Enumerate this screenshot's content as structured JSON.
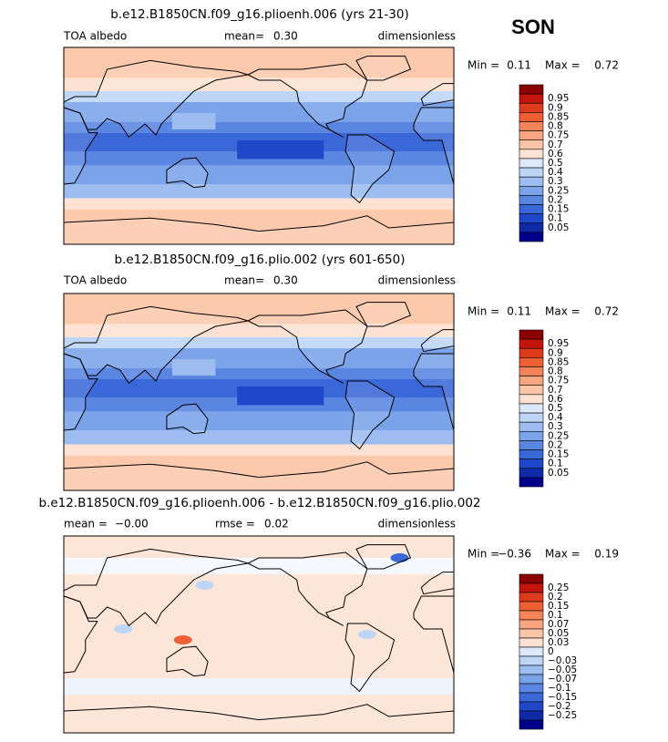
{
  "season": "SON",
  "panels": [
    {
      "title": "b.e12.B1850CN.f09_g16.plioenh.006 (yrs 21-30)",
      "subtitle": [
        "TOA albedo",
        "mean=",
        "0.30",
        "dimensionless"
      ],
      "minmax": [
        "Min =",
        "0.11",
        "Max =",
        "0.72"
      ],
      "colorbar": [
        "0.95",
        "0.9",
        "0.85",
        "0.8",
        "0.75",
        "0.7",
        "0.6",
        "0.5",
        "0.4",
        "0.3",
        "0.25",
        "0.2",
        "0.15",
        "0.1",
        "0.05"
      ]
    },
    {
      "title": "b.e12.B1850CN.f09_g16.plio.002 (yrs 601-650)",
      "subtitle": [
        "TOA albedo",
        "mean=",
        "0.30",
        "dimensionless"
      ],
      "minmax": [
        "Min =",
        "0.11",
        "Max =",
        "0.72"
      ],
      "colorbar": [
        "0.95",
        "0.9",
        "0.85",
        "0.8",
        "0.75",
        "0.7",
        "0.6",
        "0.5",
        "0.4",
        "0.3",
        "0.25",
        "0.2",
        "0.15",
        "0.1",
        "0.05"
      ]
    },
    {
      "title": "b.e12.B1850CN.f09_g16.plioenh.006 - b.e12.B1850CN.f09_g16.plio.002",
      "subtitle": [
        "mean =",
        "−0.00",
        "rmse =",
        "0.02",
        "dimensionless"
      ],
      "minmax": [
        "Min =",
        "−0.36",
        "Max =",
        "0.19"
      ],
      "colorbar": [
        "0.25",
        "0.2",
        "0.15",
        "0.1",
        "0.07",
        "0.05",
        "0.03",
        "0",
        "−0.03",
        "−0.05",
        "−0.07",
        "−0.1",
        "−0.15",
        "−0.2",
        "−0.25"
      ]
    }
  ]
}
